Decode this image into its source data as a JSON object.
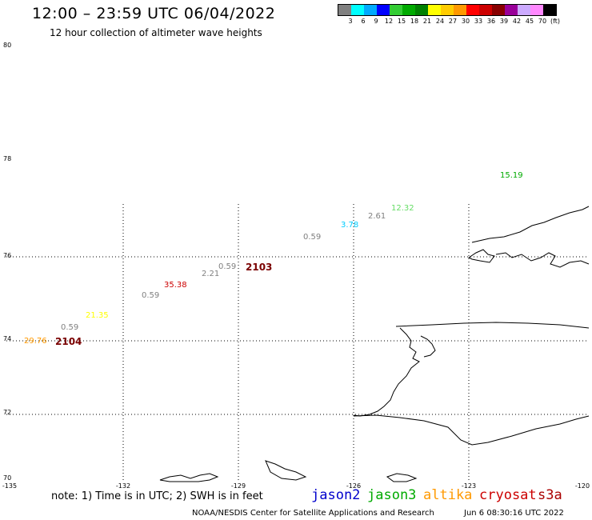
{
  "header": {
    "title": "12:00 – 23:59 UTC 06/04/2022",
    "subtitle": "12 hour collection of altimeter wave heights"
  },
  "legend": {
    "colors": [
      "#808080",
      "#00ffff",
      "#00aaff",
      "#0000ff",
      "#33cc33",
      "#00aa00",
      "#008000",
      "#ffff00",
      "#ffcc00",
      "#ff9900",
      "#ff0000",
      "#cc0000",
      "#880000",
      "#990099",
      "#ccaaff",
      "#ff88ff",
      "#000000"
    ],
    "labels": [
      "3",
      "6",
      "9",
      "12",
      "15",
      "18",
      "21",
      "24",
      "27",
      "30",
      "33",
      "36",
      "39",
      "42",
      "45",
      "70",
      "(ft)"
    ]
  },
  "axes": {
    "lat_labels": [
      "80",
      "78",
      "76",
      "74",
      "72",
      "70"
    ],
    "lon_labels": [
      "-135",
      "-132",
      "-129",
      "-126",
      "-123",
      "-120"
    ]
  },
  "observations": [
    {
      "value": "15.19",
      "color": "#00aa00"
    },
    {
      "value": "12.32",
      "color": "#66dd66"
    },
    {
      "value": "2.61",
      "color": "#808080"
    },
    {
      "value": "3.78",
      "color": "#00ccff"
    },
    {
      "value": "0.59",
      "color": "#808080"
    },
    {
      "value": "0.59",
      "color": "#808080"
    },
    {
      "value": "2.21",
      "color": "#808080"
    },
    {
      "value": "35.38",
      "color": "#cc0000"
    },
    {
      "value": "0.59",
      "color": "#808080"
    },
    {
      "value": "21.35",
      "color": "#ffff00"
    },
    {
      "value": "0.59",
      "color": "#808080"
    },
    {
      "value": "29.76",
      "color": "#ff9900"
    }
  ],
  "pass_labels": [
    "2103",
    "2104"
  ],
  "footer": {
    "note": "note: 1) Time is in UTC; 2) SWH is in feet",
    "satellites": [
      {
        "name": "jason2",
        "color": "#0000cc"
      },
      {
        "name": "jason3",
        "color": "#00aa00"
      },
      {
        "name": "altika",
        "color": "#ff9900"
      },
      {
        "name": "cryosat",
        "color": "#cc0000"
      },
      {
        "name": "s3a",
        "color": "#aa0000"
      }
    ],
    "credit": "NOAA/NESDIS Center for Satellite Applications and Research",
    "timestamp": "Jun  6 08:30:16 UTC 2022"
  }
}
